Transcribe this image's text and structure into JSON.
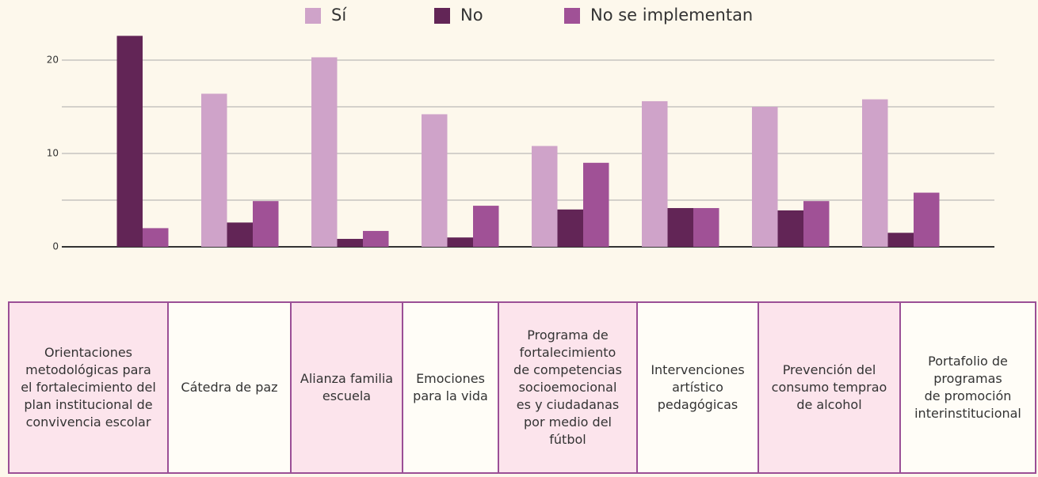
{
  "chart_data": {
    "type": "bar",
    "categories": [
      "Orientaciones\nmetodológicas para\nel fortalecimiento del\nplan institucional de\nconvivencia escolar",
      "Cátedra de paz",
      "Alianza familia\nescuela",
      "Emociones\npara la vida",
      "Programa de\nfortalecimiento\nde competencias\nsocioemocional\nes y ciudadanas\npor medio del\nfútbol",
      "Intervenciones\nartístico\npedagógicas",
      "Prevención del\nconsumo temprao\nde alcohol",
      "Portafolio de\nprogramas\nde promoción\ninterinstitucional"
    ],
    "series": [
      {
        "name": "Sí",
        "color": "#cfa3c9",
        "values": [
          0,
          16.4,
          20.3,
          14.2,
          10.8,
          15.6,
          15.0,
          15.8
        ]
      },
      {
        "name": "No",
        "color": "#622556",
        "values": [
          22.6,
          2.6,
          0.85,
          1.0,
          4.0,
          4.15,
          3.9,
          1.5
        ]
      },
      {
        "name": "No se implementan",
        "color": "#a05196",
        "values": [
          2.0,
          4.9,
          1.7,
          4.4,
          9.0,
          4.15,
          4.9,
          5.8
        ]
      }
    ],
    "ylim": [
      0,
      20
    ],
    "yticks": [
      0,
      10,
      20
    ],
    "minor_grid": [
      5,
      15
    ],
    "grid": true,
    "legend": "top"
  }
}
